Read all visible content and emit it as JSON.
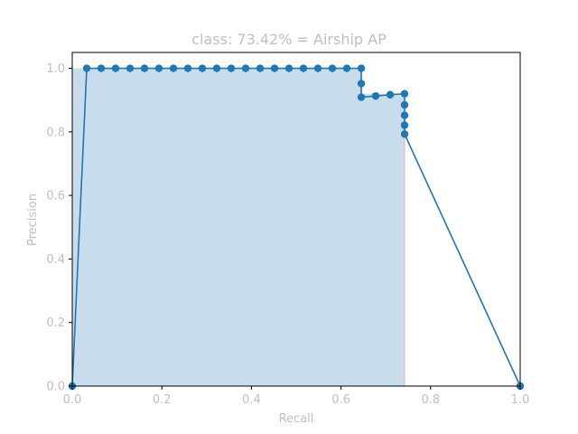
{
  "chart_data": {
    "type": "line",
    "title": "class: 73.42% = Airship AP",
    "xlabel": "Recall",
    "ylabel": "Precision",
    "xlim": [
      0.0,
      1.0
    ],
    "ylim": [
      0.0,
      1.05
    ],
    "grid": false,
    "x_ticks": [
      "0.0",
      "0.2",
      "0.4",
      "0.6",
      "0.8",
      "1.0"
    ],
    "y_ticks": [
      "0.0",
      "0.2",
      "0.4",
      "0.6",
      "0.8",
      "1.0"
    ],
    "colors": {
      "line": "#1f77b4",
      "fill": "#c8dcec",
      "vertical_marker": "#f0b0b0",
      "text": "#bfbfbf"
    },
    "series": [
      {
        "recall": [
          0.0,
          0.0323,
          0.0645,
          0.0968,
          0.129,
          0.1613,
          0.1935,
          0.2258,
          0.2581,
          0.2903,
          0.3226,
          0.3548,
          0.3871,
          0.4194,
          0.4516,
          0.4839,
          0.5161,
          0.5484,
          0.5806,
          0.6129,
          0.6452,
          0.6452,
          0.6452,
          0.6774,
          0.7097,
          0.7419,
          0.7419,
          0.7419,
          0.7419,
          0.7419,
          1.0
        ],
        "precision": [
          0.0,
          1.0,
          1.0,
          1.0,
          1.0,
          1.0,
          1.0,
          1.0,
          1.0,
          1.0,
          1.0,
          1.0,
          1.0,
          1.0,
          1.0,
          1.0,
          1.0,
          1.0,
          1.0,
          1.0,
          1.0,
          0.952,
          0.909,
          0.913,
          0.917,
          0.92,
          0.885,
          0.852,
          0.821,
          0.793,
          0.0
        ]
      }
    ],
    "ap_area": {
      "recall": [
        0.0,
        0.0323,
        0.0645,
        0.0968,
        0.129,
        0.1613,
        0.1935,
        0.2258,
        0.2581,
        0.2903,
        0.3226,
        0.3548,
        0.3871,
        0.4194,
        0.4516,
        0.4839,
        0.5161,
        0.5484,
        0.5806,
        0.6129,
        0.6452,
        0.6452,
        0.7419,
        0.7419
      ],
      "precision": [
        1.0,
        1.0,
        1.0,
        1.0,
        1.0,
        1.0,
        1.0,
        1.0,
        1.0,
        1.0,
        1.0,
        1.0,
        1.0,
        1.0,
        1.0,
        1.0,
        1.0,
        1.0,
        1.0,
        1.0,
        1.0,
        0.92,
        0.92,
        0.793
      ]
    },
    "vertical_marker_recall": 0.7419
  }
}
